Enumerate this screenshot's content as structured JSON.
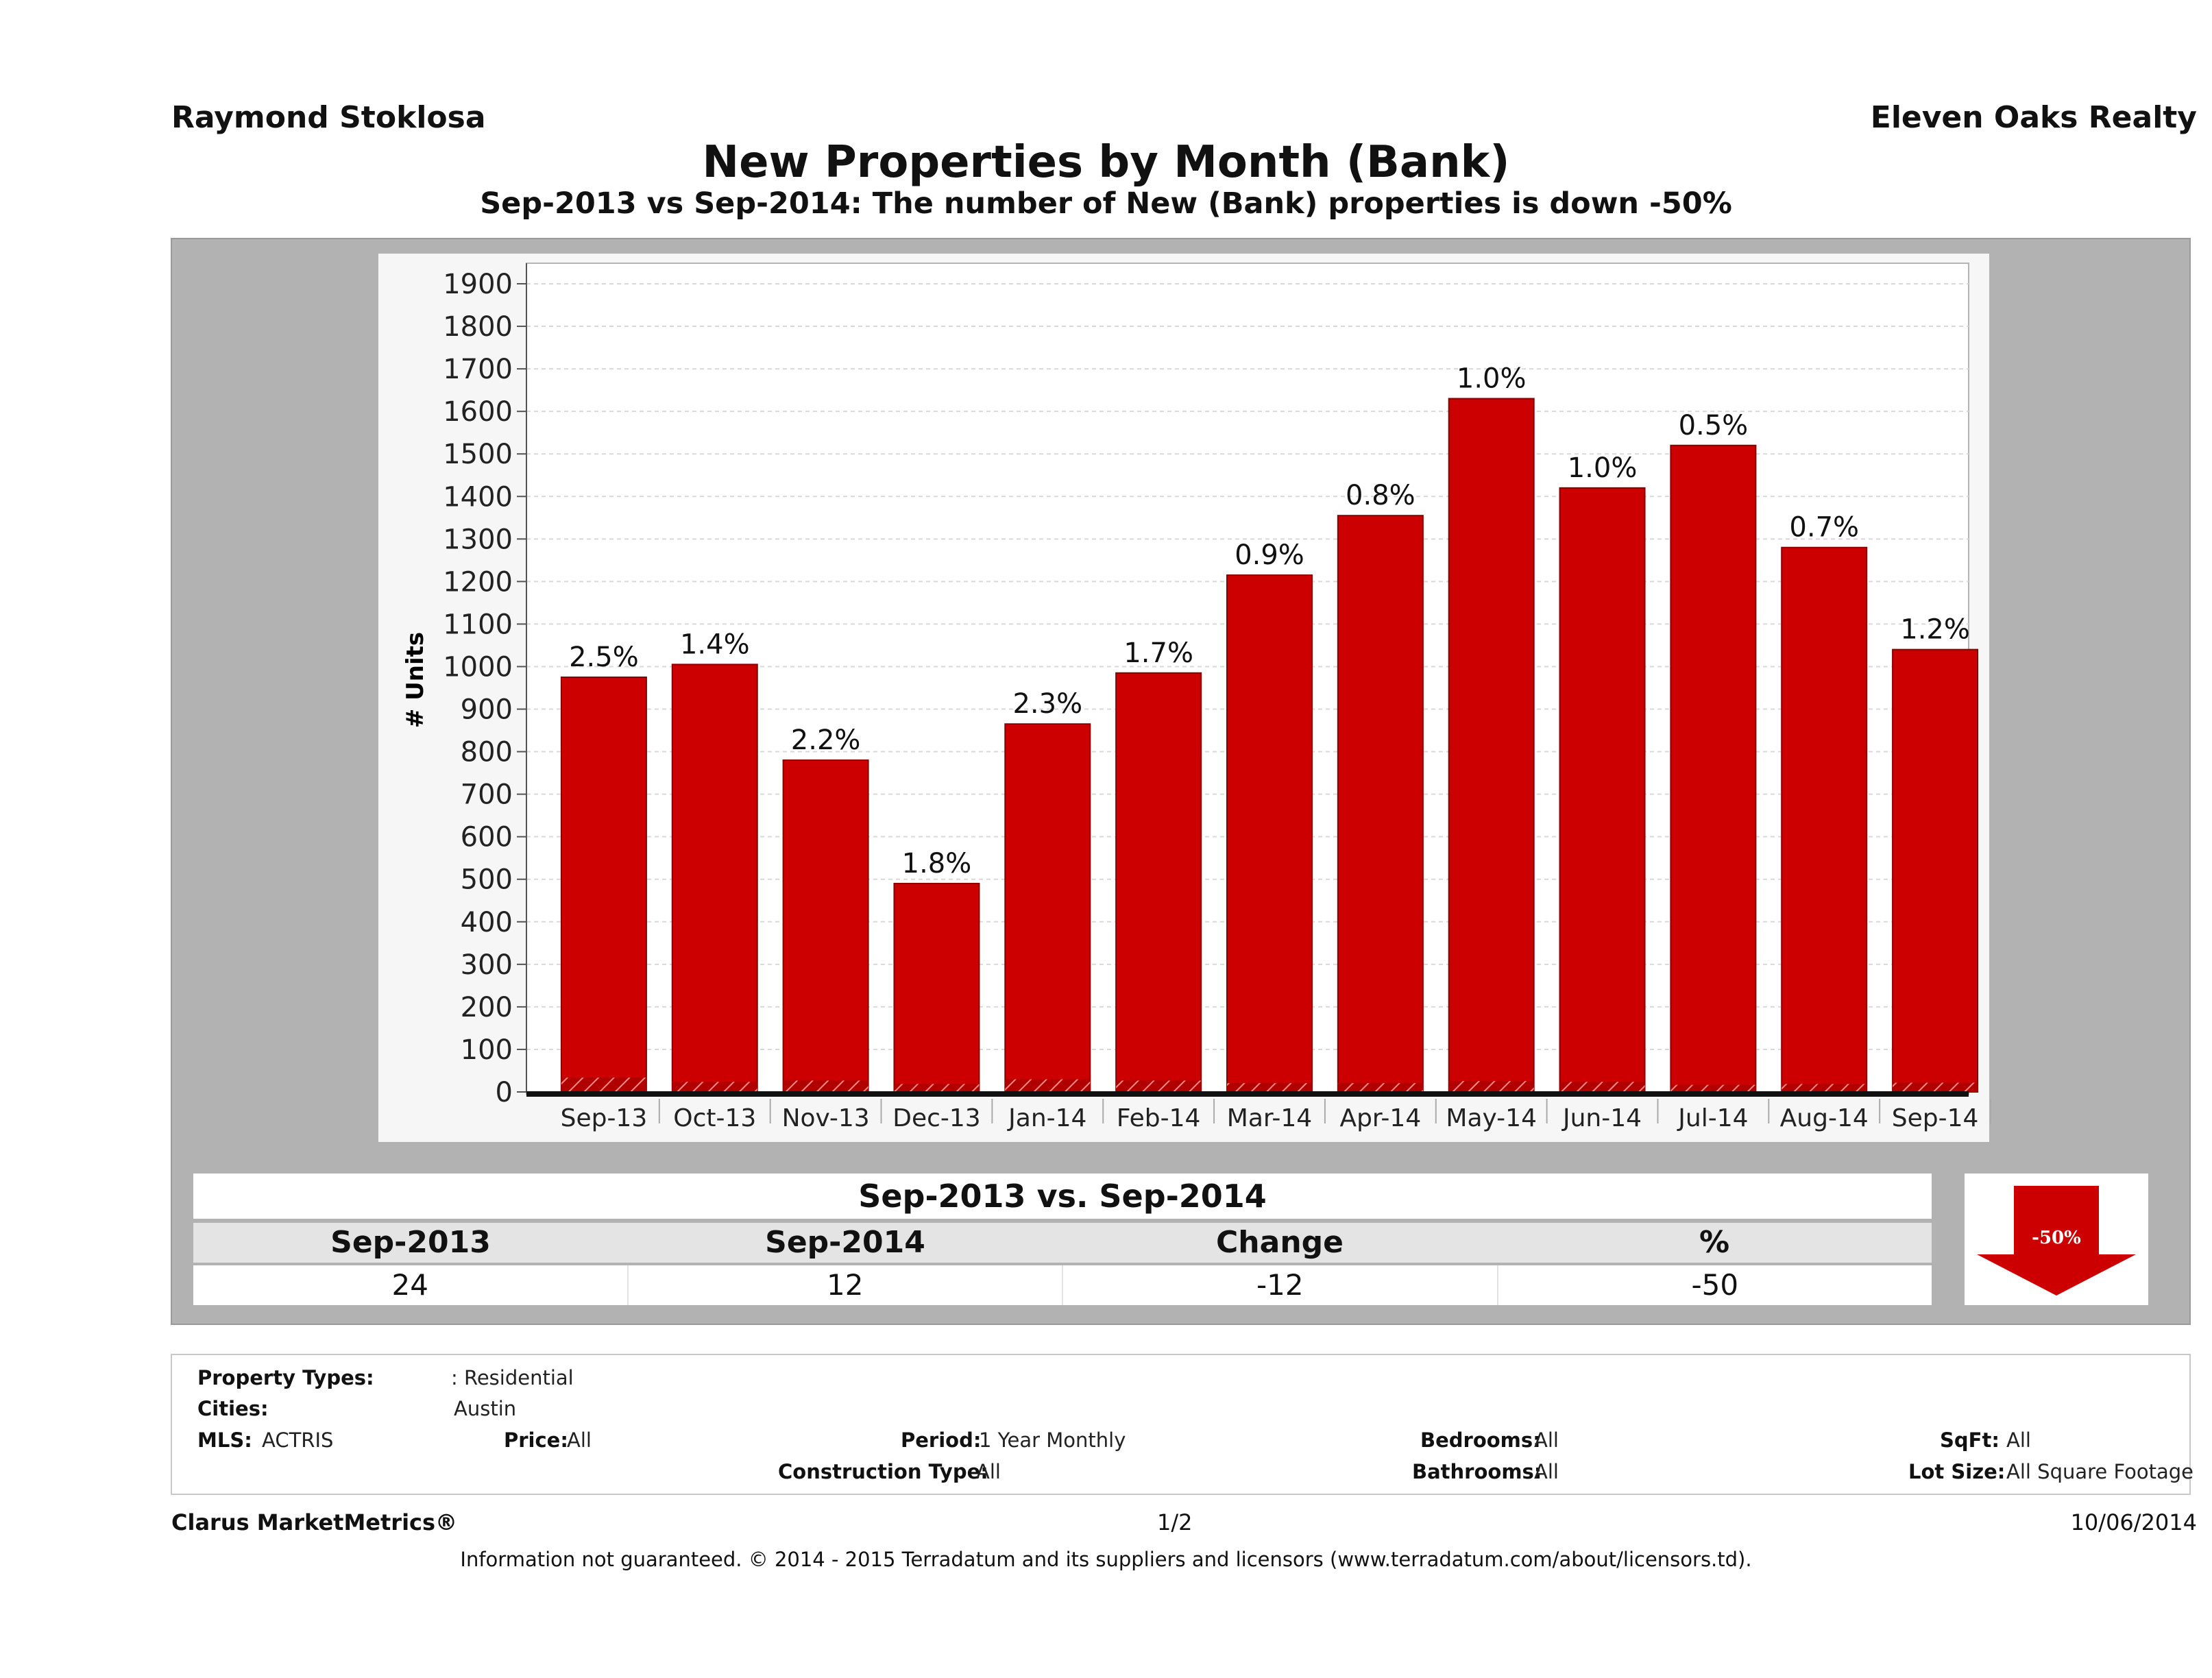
{
  "header": {
    "agent": "Raymond Stoklosa",
    "brokerage": "Eleven Oaks Realty",
    "title": "New Properties by Month (Bank)",
    "subtitle": "Sep-2013 vs Sep-2014: The number of New (Bank)  properties is down -50%"
  },
  "chart_data": {
    "type": "bar",
    "ylabel": "# Units",
    "ylim": [
      0,
      1900
    ],
    "ytick_step": 100,
    "grid": true,
    "categories": [
      "Sep-13",
      "Oct-13",
      "Nov-13",
      "Dec-13",
      "Jan-14",
      "Feb-14",
      "Mar-14",
      "Apr-14",
      "May-14",
      "Jun-14",
      "Jul-14",
      "Aug-14",
      "Sep-14"
    ],
    "series": [
      {
        "values": [
          975,
          1005,
          780,
          490,
          865,
          985,
          1215,
          1355,
          1630,
          1420,
          1520,
          1280,
          1040
        ],
        "color": "#cc0000"
      },
      {
        "values": [
          24,
          14,
          17,
          9,
          20,
          17,
          11,
          11,
          16,
          14,
          7,
          9,
          12
        ],
        "color": "#aa0000"
      }
    ],
    "data_labels": [
      "2.5%",
      "1.4%",
      "2.2%",
      "1.8%",
      "2.3%",
      "1.7%",
      "0.9%",
      "0.8%",
      "1.0%",
      "1.0%",
      "0.5%",
      "0.7%",
      "1.2%"
    ]
  },
  "summary": {
    "heading": "Sep-2013 vs. Sep-2014",
    "columns": [
      "Sep-2013",
      "Sep-2014",
      "Change",
      "%"
    ],
    "values": [
      "24",
      "12",
      "-12",
      "-50"
    ],
    "badge": "-50%",
    "badge_color": "#cc0000"
  },
  "filters": {
    "property_types_label": "Property Types:",
    "property_types_value": ": Residential",
    "cities_label": "Cities:",
    "cities_value": "Austin",
    "mls_label": "MLS:",
    "mls_value": "ACTRIS",
    "price_label": "Price:",
    "price_value": "All",
    "period_label": "Period:",
    "period_value": "1 Year Monthly",
    "bedrooms_label": "Bedrooms:",
    "bedrooms_value": "All",
    "sqft_label": "SqFt:",
    "sqft_value": "All",
    "construction_label": "Construction Type:",
    "construction_value": "All",
    "bathrooms_label": "Bathrooms:",
    "bathrooms_value": "All",
    "lotsize_label": "Lot Size:",
    "lotsize_value": "All Square Footage"
  },
  "footer": {
    "brand": "Clarus MarketMetrics®",
    "page": "1/2",
    "date": "10/06/2014",
    "disclaimer": "Information not guaranteed. © 2014 - 2015 Terradatum and its suppliers and licensors (www.terradatum.com/about/licensors.td)."
  }
}
